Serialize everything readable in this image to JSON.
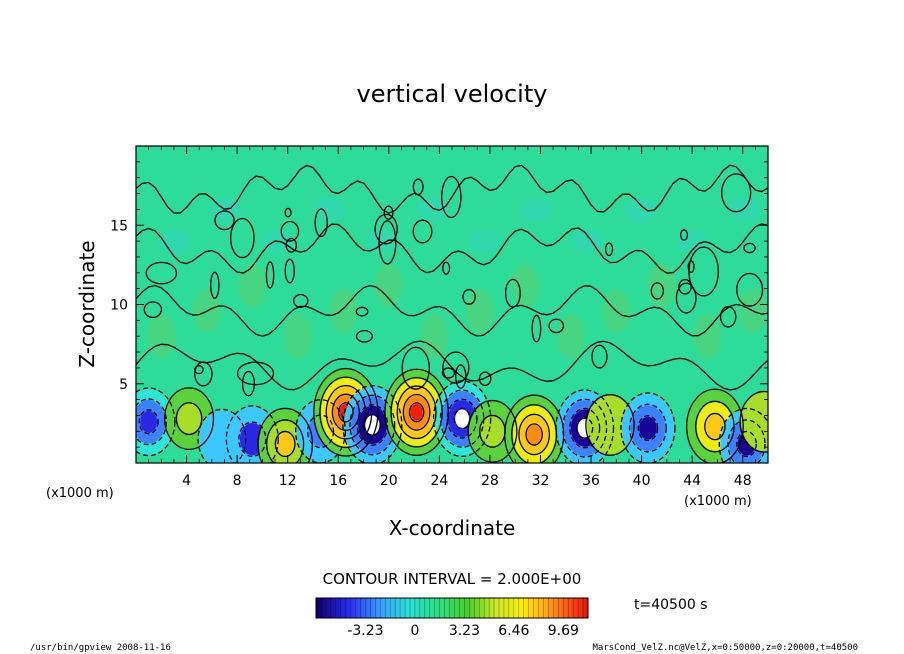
{
  "chart_data": {
    "type": "heatmap",
    "title": "vertical velocity",
    "xlabel": "X-coordinate",
    "ylabel": "Z-coordinate",
    "x_unit_left": "(x1000 m)",
    "x_unit_right": "(x1000 m)",
    "x_ticks": [
      "4",
      "8",
      "12",
      "16",
      "20",
      "24",
      "28",
      "32",
      "36",
      "40",
      "44",
      "48"
    ],
    "y_ticks": [
      "5",
      "10",
      "15"
    ],
    "xlim": [
      0,
      50
    ],
    "ylim": [
      0,
      20
    ],
    "contour_interval_label": "CONTOUR INTERVAL = 2.000E+00",
    "time_label": "t=40500 s",
    "colorbar": {
      "ticks": [
        "-3.23",
        "0",
        "3.23",
        "6.46",
        "9.69"
      ],
      "tick_values": [
        -3.23,
        0,
        3.23,
        6.46,
        9.69
      ],
      "range": [
        -6.46,
        11.3
      ]
    },
    "features": [
      {
        "x": 1.0,
        "z": 2.6,
        "w": -4.0
      },
      {
        "x": 4.2,
        "z": 2.8,
        "w": 2.6
      },
      {
        "x": 6.8,
        "z": 1.5,
        "w": -2.2
      },
      {
        "x": 9.2,
        "z": 1.5,
        "w": -3.8
      },
      {
        "x": 11.8,
        "z": 1.2,
        "w": 4.8
      },
      {
        "x": 14.6,
        "z": 2.0,
        "w": -3.0
      },
      {
        "x": 16.6,
        "z": 3.2,
        "w": 8.5
      },
      {
        "x": 18.7,
        "z": 2.4,
        "w": -6.5
      },
      {
        "x": 22.2,
        "z": 3.2,
        "w": 8.2
      },
      {
        "x": 25.8,
        "z": 2.8,
        "w": -5.8
      },
      {
        "x": 28.2,
        "z": 2.0,
        "w": 2.6
      },
      {
        "x": 31.5,
        "z": 1.8,
        "w": 6.5
      },
      {
        "x": 35.5,
        "z": 2.2,
        "w": -6.0
      },
      {
        "x": 37.5,
        "z": 2.4,
        "w": 2.4
      },
      {
        "x": 40.5,
        "z": 2.2,
        "w": -4.6
      },
      {
        "x": 45.8,
        "z": 2.3,
        "w": 5.6
      },
      {
        "x": 48.3,
        "z": 1.2,
        "w": -4.8
      },
      {
        "x": 49.7,
        "z": 2.6,
        "w": 2.4
      }
    ]
  },
  "footer": {
    "left": "/usr/bin/gpview   2008-11-16",
    "right": "MarsCond_VelZ.nc@VelZ,x=0:50000,z=0:20000,t=40500"
  }
}
